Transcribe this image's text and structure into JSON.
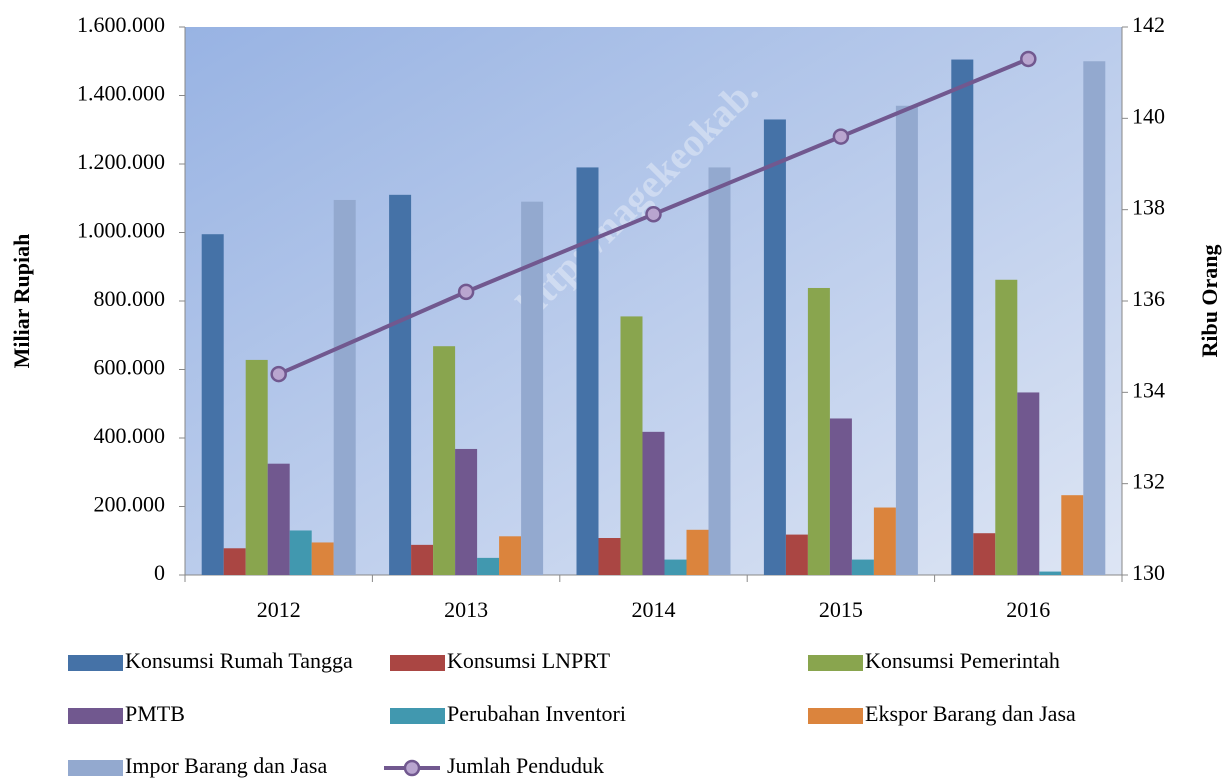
{
  "chart_data": {
    "type": "bar",
    "watermark": "http://nagekeokab.",
    "ylabel": "Miliar Rupiah",
    "y2label": "Ribu Orang",
    "categories": [
      "2012",
      "2013",
      "2014",
      "2015",
      "2016"
    ],
    "ylim": [
      0,
      1600000
    ],
    "yticks": [
      0,
      {
        "value": 200000,
        "label": "200.000"
      },
      {
        "value": 400000,
        "label": "400.000"
      },
      {
        "value": 600000,
        "label": "600.000"
      },
      {
        "value": 800000,
        "label": "800.000"
      },
      {
        "value": 1000000,
        "label": "1.000.000"
      },
      {
        "value": 1200000,
        "label": "1.200.000"
      },
      {
        "value": 1400000,
        "label": "1.400.000"
      },
      {
        "value": 1600000,
        "label": "1.600.000"
      }
    ],
    "y2lim": [
      130,
      142
    ],
    "y2ticks": [
      130,
      132,
      134,
      136,
      138,
      140,
      142
    ],
    "series": [
      {
        "name": "Konsumsi Rumah Tangga",
        "color": "#4572a7",
        "values": [
          995000,
          1110000,
          1190000,
          1330000,
          1505000
        ]
      },
      {
        "name": "Konsumsi LNPRT",
        "color": "#aa4643",
        "values": [
          78000,
          88000,
          108000,
          118000,
          122000
        ]
      },
      {
        "name": "Konsumsi Pemerintah",
        "color": "#89a54e",
        "values": [
          628000,
          668000,
          755000,
          838000,
          862000
        ]
      },
      {
        "name": "PMTB",
        "color": "#71588f",
        "values": [
          325000,
          368000,
          418000,
          457000,
          533000
        ]
      },
      {
        "name": "Perubahan Inventori",
        "color": "#4198af",
        "values": [
          130000,
          50000,
          45000,
          45000,
          10000
        ]
      },
      {
        "name": "Ekspor Barang dan Jasa",
        "color": "#db843d",
        "values": [
          95000,
          113000,
          132000,
          197000,
          233000
        ]
      },
      {
        "name": "Impor Barang dan Jasa",
        "color": "#93a9cf",
        "values": [
          1095000,
          1090000,
          1190000,
          1370000,
          1500000
        ]
      },
      {
        "name": "Jumlah Penduduk",
        "type": "line",
        "axis": "y2",
        "color": "#71588f",
        "marker_color": "#b9a5cf",
        "values": [
          134.4,
          136.2,
          137.9,
          139.6,
          141.3
        ]
      }
    ]
  }
}
